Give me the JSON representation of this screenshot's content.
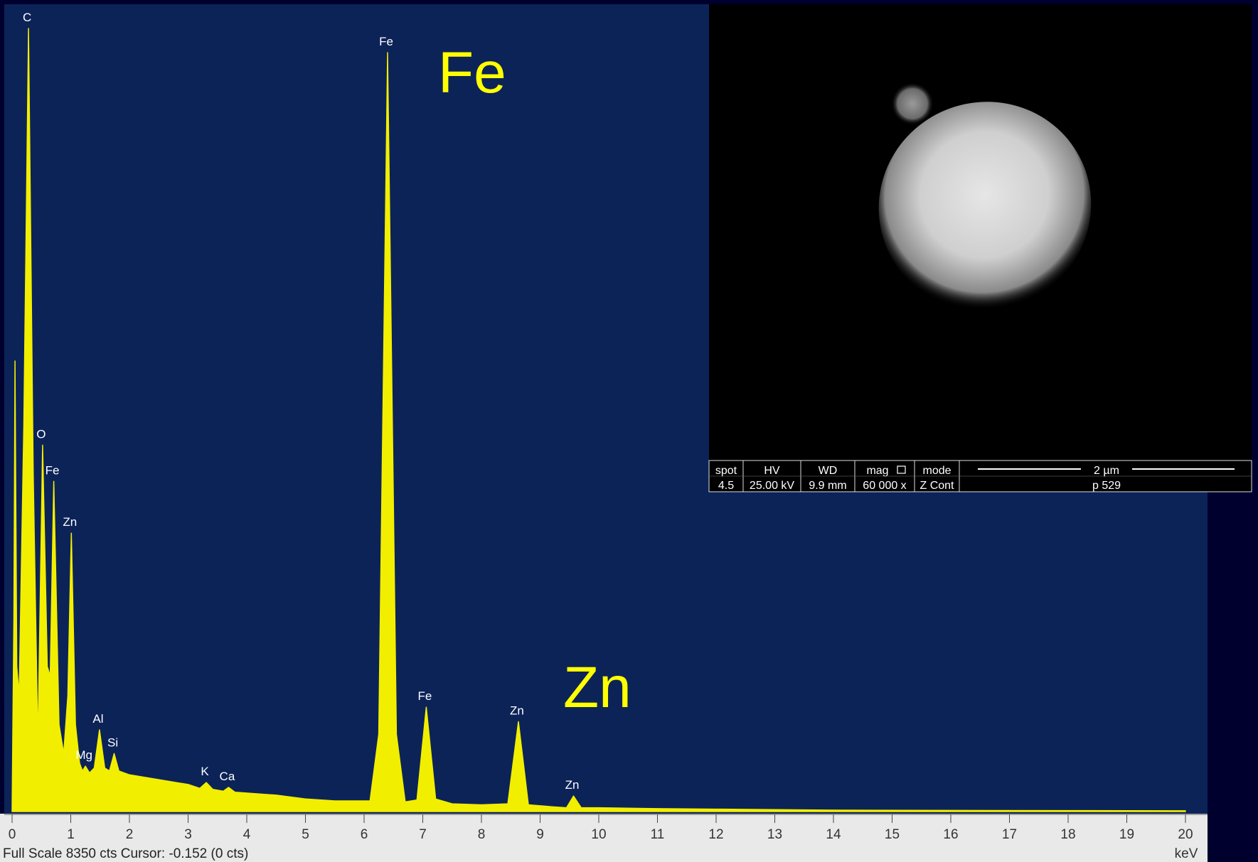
{
  "chart_data": {
    "type": "area",
    "color": "#f2ee00",
    "xlim": [
      0,
      20
    ],
    "ylim": [
      0,
      8350
    ],
    "xticks": [
      0,
      1,
      2,
      3,
      4,
      5,
      6,
      7,
      8,
      9,
      10,
      11,
      12,
      13,
      14,
      15,
      16,
      17,
      18,
      19,
      20
    ],
    "x_label": "keV",
    "status": "Full Scale 8350 cts Cursor: -0.152  (0 cts)",
    "x": [
      0,
      0.03,
      0.05,
      0.08,
      0.12,
      0.2,
      0.28,
      0.36,
      0.44,
      0.52,
      0.6,
      0.65,
      0.71,
      0.8,
      0.88,
      0.95,
      1.01,
      1.08,
      1.15,
      1.2,
      1.25,
      1.32,
      1.4,
      1.49,
      1.58,
      1.66,
      1.74,
      1.82,
      2.0,
      2.5,
      3.0,
      3.2,
      3.31,
      3.42,
      3.6,
      3.69,
      3.8,
      4.5,
      5.0,
      5.5,
      6.1,
      6.25,
      6.4,
      6.55,
      6.7,
      6.9,
      7.06,
      7.22,
      7.5,
      8.0,
      8.45,
      8.63,
      8.8,
      9.2,
      9.45,
      9.57,
      9.7,
      10,
      11,
      12,
      14,
      16,
      18,
      20
    ],
    "values": [
      0,
      2000,
      4660,
      1500,
      1200,
      4000,
      8100,
      3500,
      680,
      3790,
      1500,
      1400,
      3415,
      900,
      600,
      1200,
      2880,
      900,
      500,
      420,
      470,
      400,
      450,
      845,
      450,
      420,
      600,
      420,
      380,
      330,
      280,
      240,
      300,
      230,
      210,
      250,
      200,
      170,
      130,
      110,
      110,
      800,
      7850,
      800,
      100,
      120,
      1080,
      130,
      80,
      70,
      80,
      930,
      70,
      50,
      40,
      160,
      40,
      40,
      30,
      25,
      15,
      12,
      10,
      8
    ],
    "peak_labels": [
      {
        "text": "C",
        "x": 0.28
      },
      {
        "text": "O",
        "x": 0.52
      },
      {
        "text": "Fe",
        "x": 0.71
      },
      {
        "text": "Zn",
        "x": 1.01
      },
      {
        "text": "Mg",
        "x": 1.25
      },
      {
        "text": "Al",
        "x": 1.49
      },
      {
        "text": "Si",
        "x": 1.74
      },
      {
        "text": "K",
        "x": 3.31
      },
      {
        "text": "Ca",
        "x": 3.69
      },
      {
        "text": "Fe",
        "x": 6.4
      },
      {
        "text": "Fe",
        "x": 7.06
      },
      {
        "text": "Zn",
        "x": 8.63
      },
      {
        "text": "Zn",
        "x": 9.57
      }
    ],
    "annotations": [
      "Fe",
      "Zn"
    ]
  },
  "sem_image": {
    "headers": [
      "spot",
      "HV",
      "WD",
      "mag",
      "mode"
    ],
    "values": [
      "4.5",
      "25.00 kV",
      "9.9 mm",
      "60 000 x",
      "Z Cont"
    ],
    "scale_bar": "2 µm",
    "label": "p 529"
  }
}
